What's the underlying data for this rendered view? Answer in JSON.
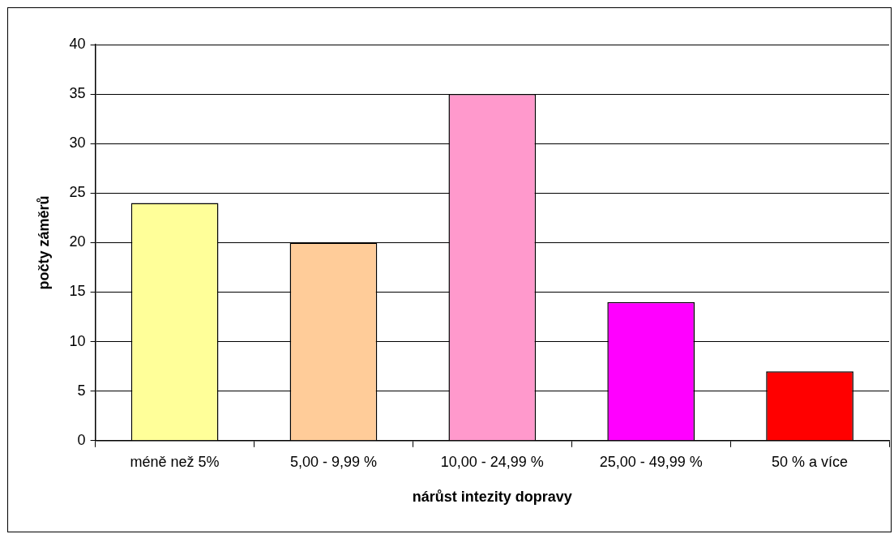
{
  "chart_data": {
    "type": "bar",
    "xlabel": "nárůst intezity dopravy",
    "ylabel": "počty záměrů",
    "categories": [
      "méně než 5%",
      "5,00 - 9,99 %",
      "10,00 - 24,99 %",
      "25,00 - 49,99 %",
      "50 % a více"
    ],
    "values": [
      24,
      20,
      35,
      14,
      7
    ],
    "colors": [
      "#ffff99",
      "#ffcc99",
      "#ff99cc",
      "#ff00ff",
      "#ff0000"
    ],
    "ylim": [
      0,
      40
    ],
    "yticks": [
      0,
      5,
      10,
      15,
      20,
      25,
      30,
      35,
      40
    ],
    "grid": "y",
    "legend": false
  }
}
